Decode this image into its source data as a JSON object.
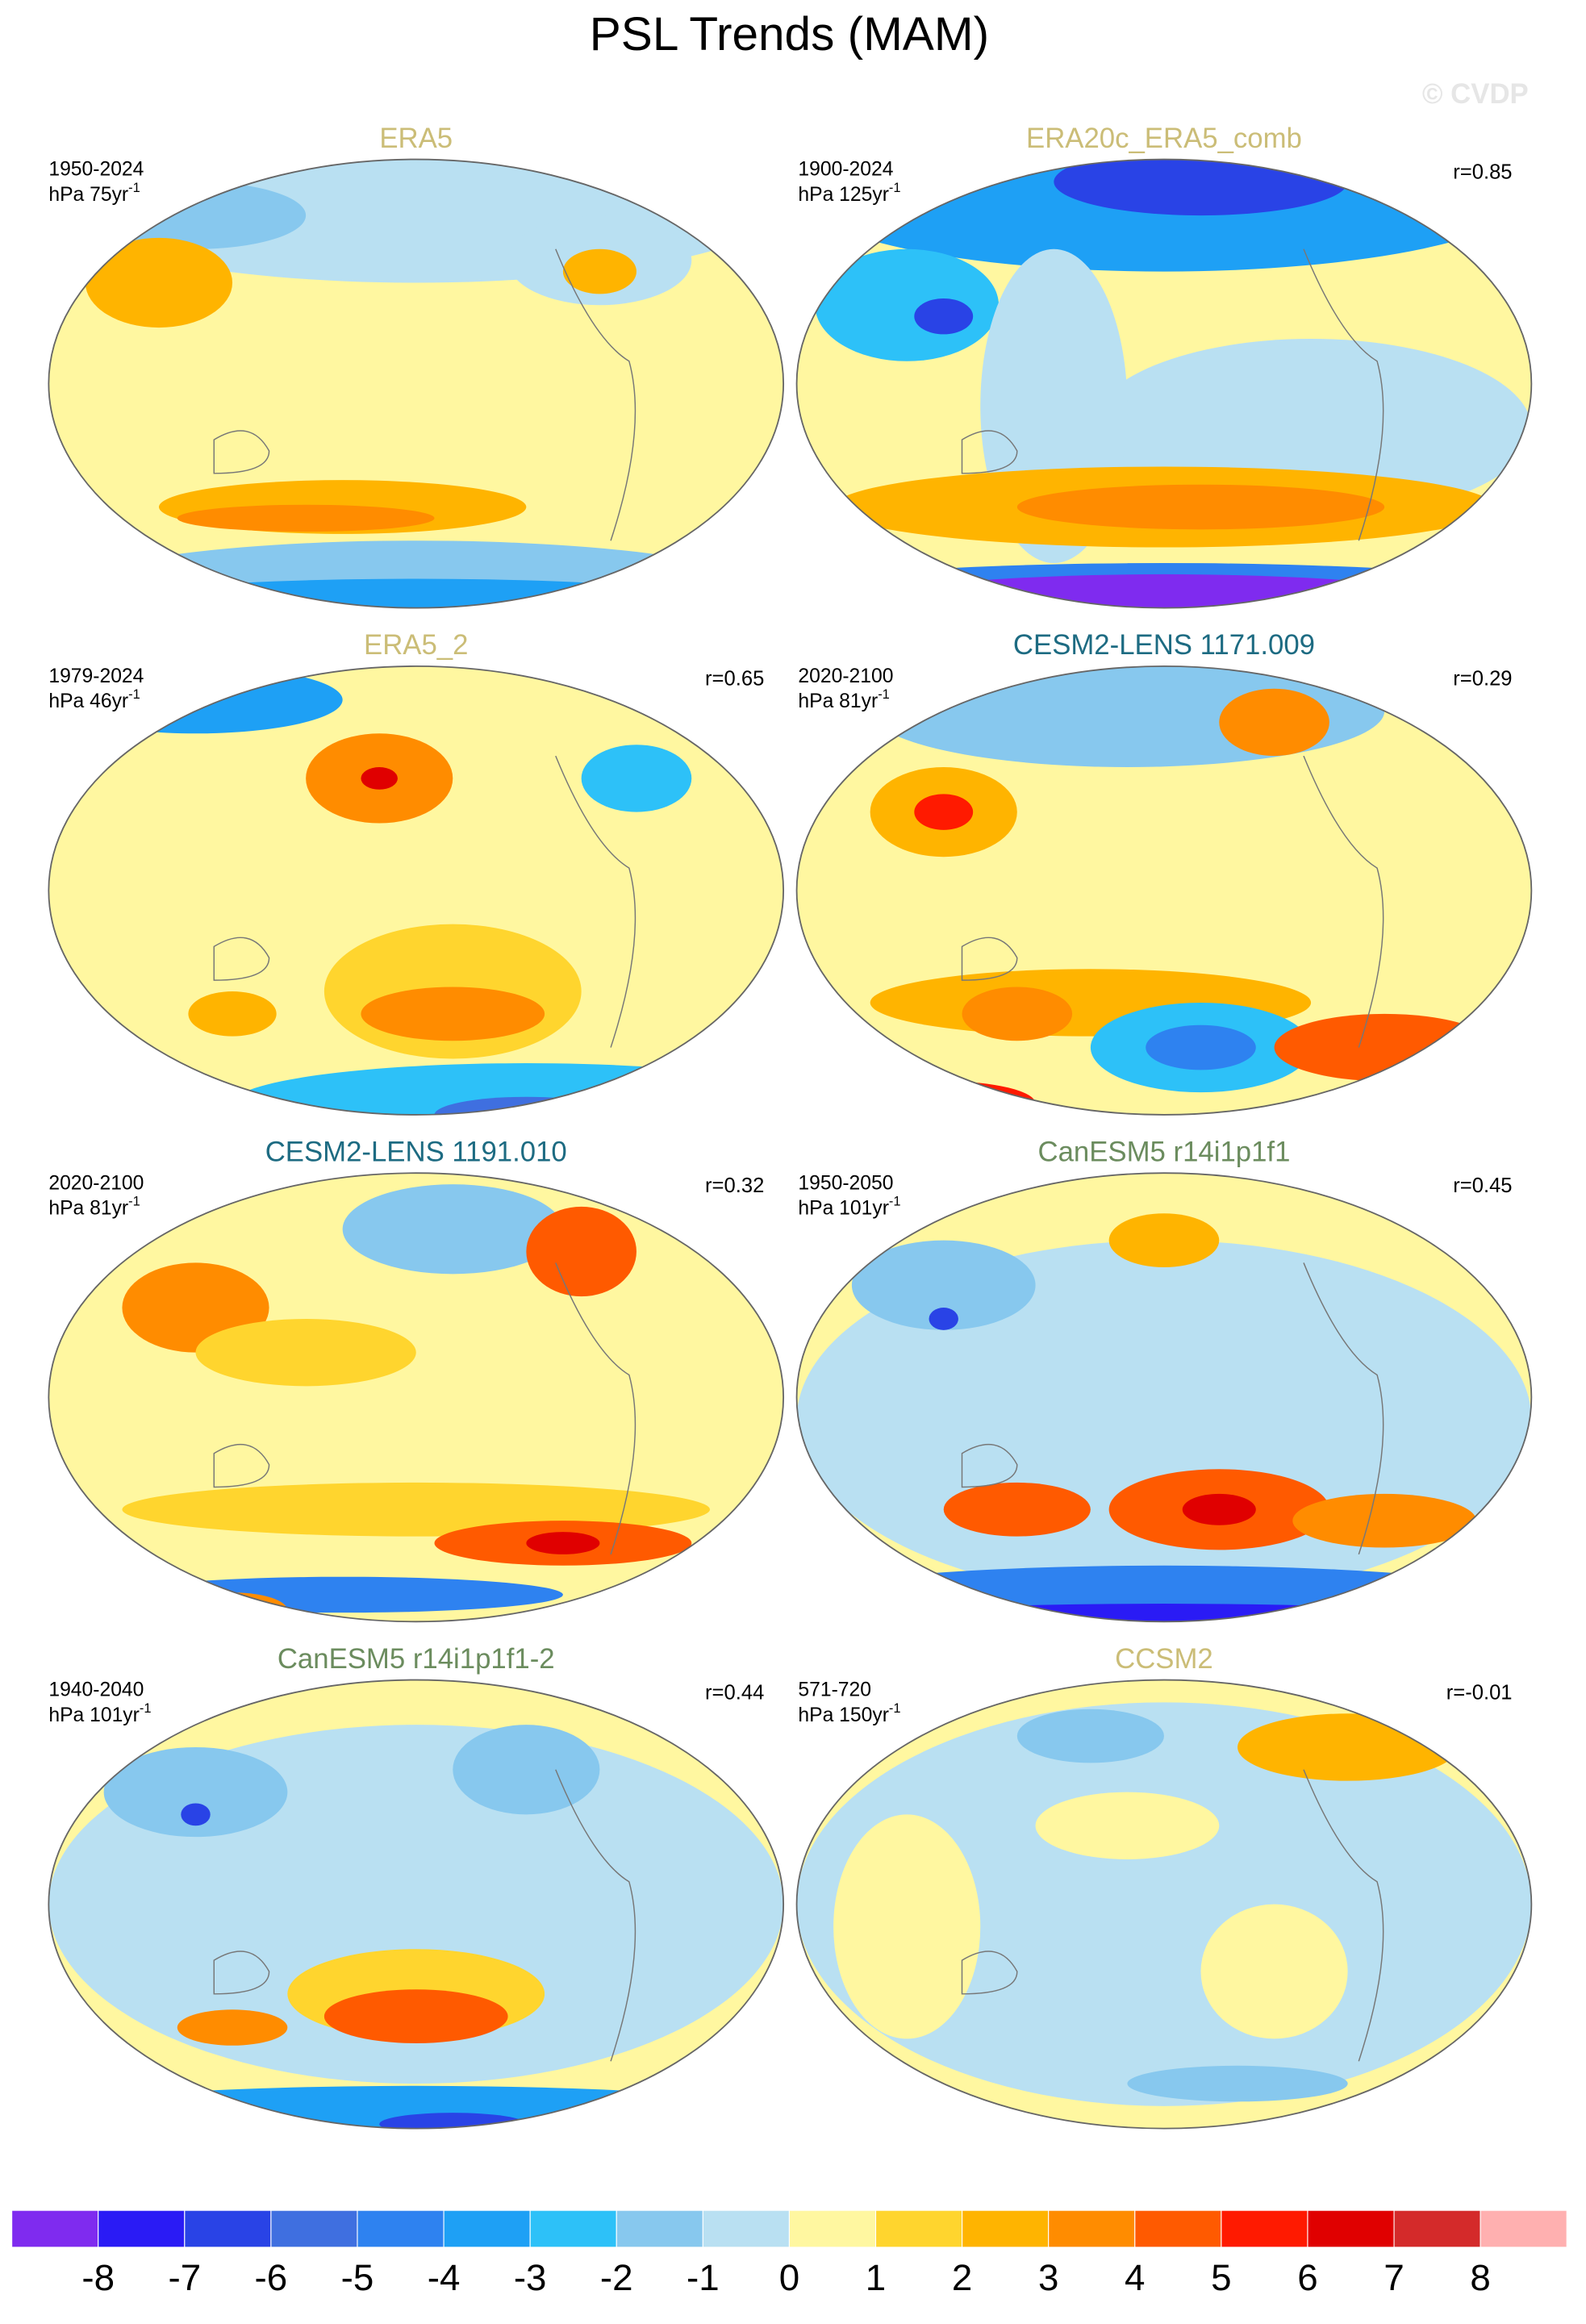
{
  "title": "PSL Trends (MAM)",
  "watermark": "© CVDP",
  "panels": [
    {
      "title": "ERA5",
      "title_color": "#cbbd77",
      "period": "1950-2024",
      "units": "hPa 75yr",
      "units_exp": "-1"
    },
    {
      "title": "ERA20c_ERA5_comb",
      "title_color": "#cbbd77",
      "period": "1900-2024",
      "units": "hPa 125yr",
      "units_exp": "-1",
      "r": "r=0.85"
    },
    {
      "title": "ERA5_2",
      "title_color": "#cbbd77",
      "period": "1979-2024",
      "units": "hPa 46yr",
      "units_exp": "-1",
      "r": "r=0.65"
    },
    {
      "title": "CESM2-LENS 1171.009",
      "title_color": "#1d6b82",
      "period": "2020-2100",
      "units": "hPa 81yr",
      "units_exp": "-1",
      "r": "r=0.29"
    },
    {
      "title": "CESM2-LENS 1191.010",
      "title_color": "#1d6b82",
      "period": "2020-2100",
      "units": "hPa 81yr",
      "units_exp": "-1",
      "r": "r=0.32"
    },
    {
      "title": "CanESM5 r14i1p1f1",
      "title_color": "#6b8c5e",
      "period": "1950-2050",
      "units": "hPa 101yr",
      "units_exp": "-1",
      "r": "r=0.45"
    },
    {
      "title": "CanESM5 r14i1p1f1-2",
      "title_color": "#6b8c5e",
      "period": "1940-2040",
      "units": "hPa 101yr",
      "units_exp": "-1",
      "r": "r=0.44"
    },
    {
      "title": "CCSM2",
      "title_color": "#cbbd77",
      "period": "571-720",
      "units": "hPa 150yr",
      "units_exp": "-1",
      "r": "r=-0.01"
    }
  ],
  "colorbar": {
    "colors": [
      "#7f2bef",
      "#2a1bf5",
      "#2943e6",
      "#3f6fe0",
      "#2e82f0",
      "#1ea0f5",
      "#2dc1f8",
      "#87c8ee",
      "#b9e0f2",
      "#fff7a0",
      "#ffd52e",
      "#ffb400",
      "#ff8c00",
      "#ff5a00",
      "#ff1a00",
      "#e00000",
      "#d42a2a",
      "#ffb0b0"
    ],
    "ticks": [
      -8,
      -7,
      -6,
      -5,
      -4,
      -3,
      -2,
      -1,
      0,
      1,
      2,
      3,
      4,
      5,
      6,
      7,
      8
    ]
  }
}
